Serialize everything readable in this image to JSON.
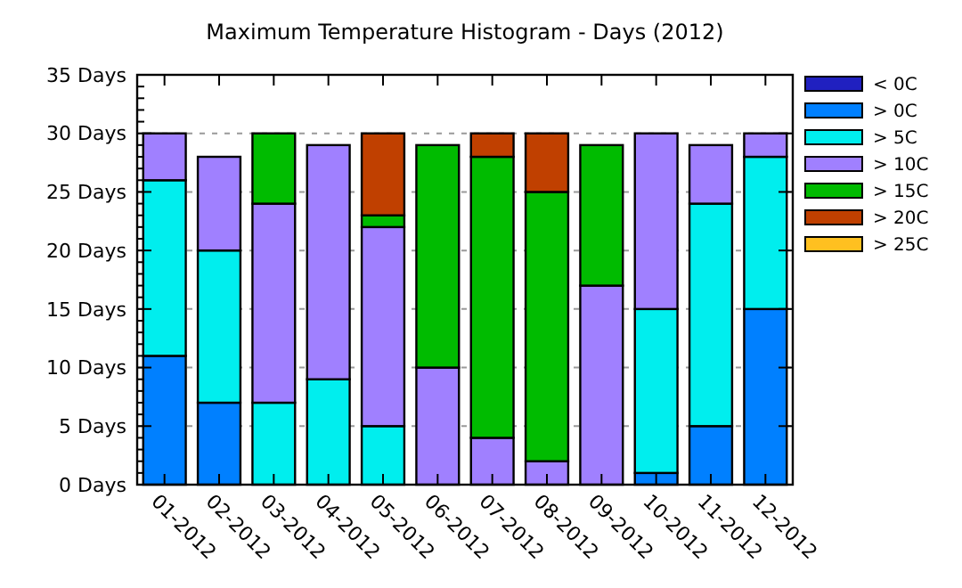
{
  "chart_data": {
    "type": "bar",
    "title": "Maximum Temperature Histogram - Days (2012)",
    "stacked": true,
    "categories": [
      "01-2012",
      "02-2012",
      "03-2012",
      "04-2012",
      "05-2012",
      "06-2012",
      "07-2012",
      "08-2012",
      "09-2012",
      "10-2012",
      "11-2012",
      "12-2012"
    ],
    "series": [
      {
        "name": "< 0C",
        "color": "#2020c0",
        "values": [
          0,
          0,
          0,
          0,
          0,
          0,
          0,
          0,
          0,
          0,
          0,
          0
        ]
      },
      {
        "name": "> 0C",
        "color": "#0080ff",
        "values": [
          11,
          7,
          0,
          0,
          0,
          0,
          0,
          0,
          0,
          1,
          5,
          15
        ]
      },
      {
        "name": "> 5C",
        "color": "#00eeee",
        "values": [
          15,
          13,
          7,
          9,
          5,
          0,
          0,
          0,
          0,
          14,
          19,
          13
        ]
      },
      {
        "name": "> 10C",
        "color": "#a080ff",
        "values": [
          4,
          8,
          17,
          20,
          17,
          10,
          4,
          2,
          17,
          15,
          5,
          2
        ]
      },
      {
        "name": "> 15C",
        "color": "#00bb00",
        "values": [
          0,
          0,
          6,
          0,
          1,
          19,
          24,
          23,
          12,
          0,
          0,
          0
        ]
      },
      {
        "name": "> 20C",
        "color": "#c04000",
        "values": [
          0,
          0,
          0,
          0,
          7,
          0,
          2,
          5,
          0,
          0,
          0,
          0
        ]
      },
      {
        "name": "> 25C",
        "color": "#ffc020",
        "values": [
          0,
          0,
          0,
          0,
          0,
          0,
          0,
          0,
          0,
          0,
          0,
          0
        ]
      }
    ],
    "ylim": [
      0,
      35
    ],
    "yticks": [
      {
        "value": 0,
        "label": "0 Days"
      },
      {
        "value": 5,
        "label": "5 Days"
      },
      {
        "value": 10,
        "label": "10 Days"
      },
      {
        "value": 15,
        "label": "15 Days"
      },
      {
        "value": 20,
        "label": "20 Days"
      },
      {
        "value": 25,
        "label": "25 Days"
      },
      {
        "value": 30,
        "label": "30 Days"
      },
      {
        "value": 35,
        "label": "35 Days"
      }
    ],
    "grid": "y",
    "legend": "right"
  }
}
